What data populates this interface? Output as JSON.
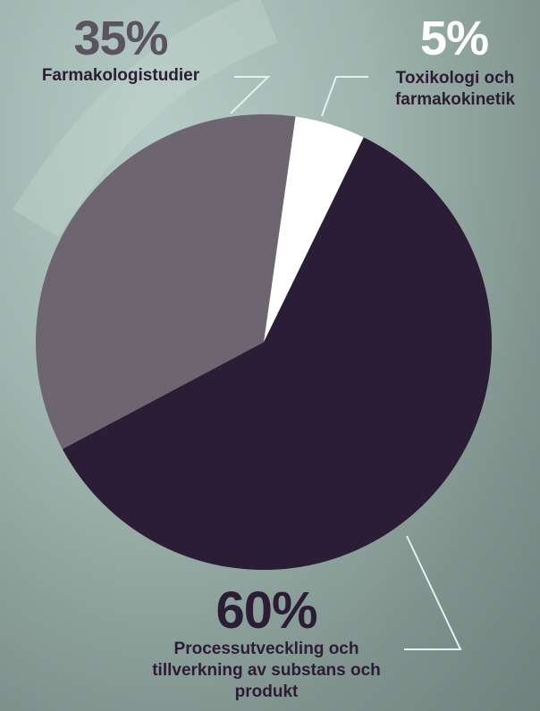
{
  "chart_data": {
    "type": "pie",
    "categories": [
      "Farmakologistudier",
      "Toxikologi och farmakokinetik",
      "Processutveckling och tillverkning av substans och produkt"
    ],
    "values": [
      35,
      5,
      60
    ],
    "value_labels": [
      "35%",
      "5%",
      "60%"
    ],
    "colors": [
      "#6d6570",
      "#ffffff",
      "#2b1d35"
    ],
    "label_colors": [
      "#5a5460",
      "#ffffff",
      "#2b1d35"
    ]
  }
}
